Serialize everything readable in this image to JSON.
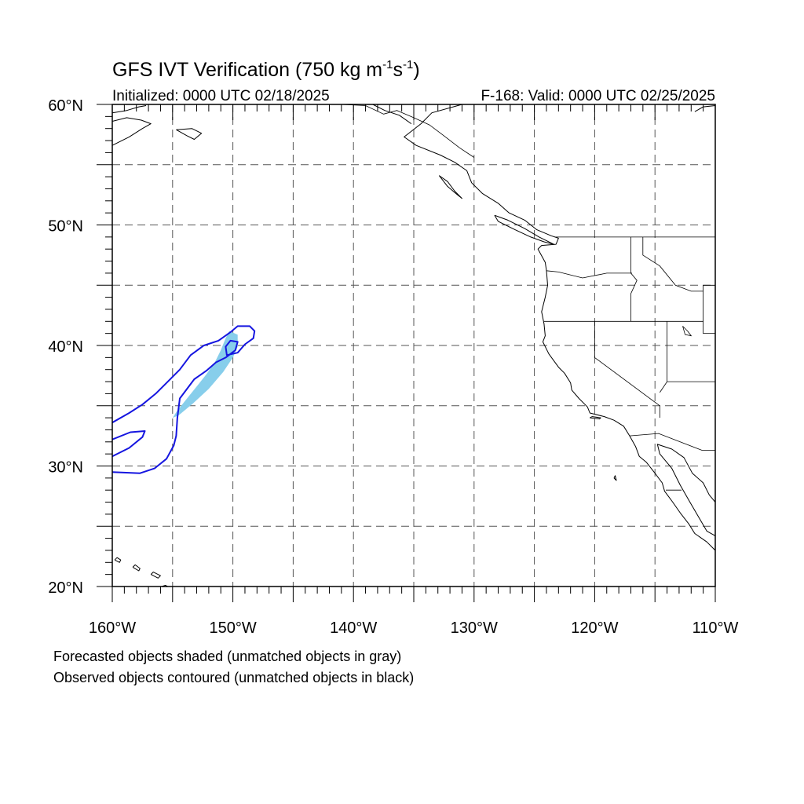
{
  "title": {
    "main": "GFS IVT Verification (750 kg m",
    "exp1": "-1",
    "mid": "s",
    "exp2": "-1",
    "close": ")"
  },
  "init_label": "Initialized: 0000 UTC 02/18/2025",
  "valid_label": "F-168: Valid: 0000 UTC 02/25/2025",
  "map": {
    "projection": "cylindrical-equidistant",
    "lon_range": [
      -160,
      -110
    ],
    "lat_range": [
      20,
      60
    ],
    "grid_spacing_deg": 5,
    "grid_style": "dashed",
    "lon_labels": [
      "160°W",
      "150°W",
      "140°W",
      "130°W",
      "120°W",
      "110°W"
    ],
    "lat_labels": [
      "20°N",
      "30°N",
      "40°N",
      "50°N",
      "60°N"
    ],
    "label_lons": [
      -160,
      -150,
      -140,
      -130,
      -120,
      -110
    ],
    "label_lats": [
      20,
      30,
      40,
      50,
      60
    ],
    "colors": {
      "coast": "#000000",
      "grid": "#555555",
      "forecast_fill": "#87ceeb",
      "observed_contour": "#1515e0"
    },
    "forecast_object": {
      "type": "shaded",
      "matched": true,
      "lonlat": [
        [
          -155.0,
          34.0
        ],
        [
          -154.6,
          34.6
        ],
        [
          -153.8,
          35.6
        ],
        [
          -153.0,
          36.6
        ],
        [
          -152.2,
          37.6
        ],
        [
          -151.5,
          38.6
        ],
        [
          -151.0,
          39.6
        ],
        [
          -150.6,
          40.6
        ],
        [
          -150.3,
          41.2
        ],
        [
          -149.6,
          40.9
        ],
        [
          -149.6,
          39.9
        ],
        [
          -150.0,
          39.0
        ],
        [
          -150.8,
          37.8
        ],
        [
          -152.0,
          36.4
        ],
        [
          -153.3,
          35.2
        ],
        [
          -154.5,
          34.2
        ]
      ]
    },
    "observed_object": {
      "type": "contour",
      "matched": true,
      "lonlat": [
        [
          -160.0,
          33.6
        ],
        [
          -158.6,
          34.4
        ],
        [
          -157.5,
          35.1
        ],
        [
          -156.4,
          36.0
        ],
        [
          -155.4,
          37.0
        ],
        [
          -154.4,
          38.0
        ],
        [
          -153.5,
          39.2
        ],
        [
          -152.4,
          40.0
        ],
        [
          -151.2,
          40.4
        ],
        [
          -150.2,
          41.1
        ],
        [
          -149.6,
          41.6
        ],
        [
          -148.6,
          41.6
        ],
        [
          -148.2,
          41.2
        ],
        [
          -148.3,
          40.6
        ],
        [
          -149.0,
          40.1
        ],
        [
          -149.6,
          39.4
        ],
        [
          -150.5,
          39.2
        ],
        [
          -150.6,
          39.9
        ],
        [
          -150.2,
          40.4
        ],
        [
          -149.6,
          40.3
        ],
        [
          -149.8,
          39.6
        ],
        [
          -150.6,
          39.0
        ],
        [
          -151.4,
          38.6
        ],
        [
          -152.2,
          37.9
        ],
        [
          -153.2,
          37.2
        ],
        [
          -154.4,
          35.6
        ],
        [
          -154.6,
          34.0
        ],
        [
          -154.7,
          32.5
        ],
        [
          -154.9,
          31.7
        ],
        [
          -155.5,
          30.6
        ],
        [
          -156.5,
          29.8
        ],
        [
          -157.7,
          29.4
        ],
        [
          -160.0,
          29.5
        ]
      ]
    },
    "observed_arm": {
      "lonlat": [
        [
          -160.0,
          32.2
        ],
        [
          -158.5,
          32.8
        ],
        [
          -157.3,
          32.9
        ],
        [
          -157.5,
          32.4
        ],
        [
          -158.6,
          31.5
        ],
        [
          -160.0,
          30.8
        ]
      ]
    },
    "coastlines": [
      {
        "name": "north-america-coast",
        "lonlat": [
          [
            -131.0,
            60.0
          ],
          [
            -133.5,
            59.3
          ],
          [
            -134.4,
            58.4
          ],
          [
            -135.8,
            57.3
          ],
          [
            -134.8,
            56.6
          ],
          [
            -132.8,
            55.8
          ],
          [
            -131.6,
            55.2
          ],
          [
            -130.6,
            54.5
          ],
          [
            -130.2,
            53.5
          ],
          [
            -129.3,
            52.6
          ],
          [
            -128.0,
            51.8
          ],
          [
            -127.1,
            51.0
          ],
          [
            -125.8,
            50.4
          ],
          [
            -124.8,
            49.6
          ],
          [
            -123.6,
            49.1
          ],
          [
            -123.0,
            48.9
          ],
          [
            -123.2,
            48.4
          ],
          [
            -124.4,
            48.3
          ],
          [
            -124.7,
            48.0
          ],
          [
            -124.1,
            46.9
          ],
          [
            -124.0,
            46.2
          ],
          [
            -123.9,
            45.0
          ],
          [
            -124.1,
            44.0
          ],
          [
            -124.4,
            42.8
          ],
          [
            -124.2,
            41.8
          ],
          [
            -124.1,
            40.8
          ],
          [
            -124.3,
            40.3
          ],
          [
            -123.8,
            39.3
          ],
          [
            -123.0,
            38.2
          ],
          [
            -122.5,
            37.7
          ],
          [
            -122.0,
            36.9
          ],
          [
            -121.9,
            36.3
          ],
          [
            -121.3,
            35.6
          ],
          [
            -120.6,
            34.9
          ],
          [
            -120.4,
            34.4
          ],
          [
            -119.2,
            34.1
          ],
          [
            -118.4,
            33.8
          ],
          [
            -117.6,
            33.3
          ],
          [
            -117.1,
            32.5
          ],
          [
            -116.6,
            31.6
          ],
          [
            -116.3,
            30.8
          ],
          [
            -115.7,
            30.3
          ],
          [
            -115.0,
            29.4
          ],
          [
            -114.4,
            28.6
          ],
          [
            -114.2,
            27.9
          ],
          [
            -113.6,
            27.1
          ],
          [
            -112.9,
            26.1
          ],
          [
            -112.2,
            25.2
          ],
          [
            -111.7,
            24.4
          ],
          [
            -110.7,
            23.7
          ],
          [
            -110.0,
            23.0
          ]
        ]
      },
      {
        "name": "baja-gulf-coast",
        "lonlat": [
          [
            -110.0,
            24.2
          ],
          [
            -110.7,
            24.6
          ],
          [
            -111.4,
            25.8
          ],
          [
            -112.1,
            27.0
          ],
          [
            -112.9,
            28.4
          ],
          [
            -113.6,
            29.8
          ],
          [
            -114.6,
            31.0
          ],
          [
            -114.8,
            31.8
          ],
          [
            -113.6,
            31.4
          ],
          [
            -112.6,
            30.7
          ],
          [
            -111.9,
            29.4
          ],
          [
            -111.0,
            28.6
          ],
          [
            -110.5,
            27.6
          ],
          [
            -110.0,
            27.0
          ]
        ]
      },
      {
        "name": "vancouver-island",
        "lonlat": [
          [
            -128.3,
            50.8
          ],
          [
            -127.2,
            50.4
          ],
          [
            -125.8,
            49.7
          ],
          [
            -124.6,
            49.0
          ],
          [
            -123.4,
            48.4
          ],
          [
            -124.2,
            48.6
          ],
          [
            -125.3,
            49.0
          ],
          [
            -126.6,
            49.6
          ],
          [
            -128.0,
            50.3
          ],
          [
            -128.3,
            50.8
          ]
        ]
      },
      {
        "name": "haida-gwaii",
        "lonlat": [
          [
            -132.9,
            54.1
          ],
          [
            -132.2,
            53.6
          ],
          [
            -131.6,
            52.8
          ],
          [
            -131.0,
            52.2
          ],
          [
            -131.5,
            52.6
          ],
          [
            -132.2,
            53.2
          ],
          [
            -132.9,
            54.1
          ]
        ]
      },
      {
        "name": "alaska-coast-west",
        "lonlat": [
          [
            -160.0,
            56.6
          ],
          [
            -158.6,
            57.3
          ],
          [
            -157.5,
            58.0
          ],
          [
            -156.8,
            58.4
          ],
          [
            -157.6,
            58.7
          ],
          [
            -158.8,
            58.9
          ],
          [
            -160.0,
            58.6
          ]
        ]
      },
      {
        "name": "alaska-coast-nw",
        "lonlat": [
          [
            -160.0,
            59.3
          ],
          [
            -158.8,
            59.5
          ],
          [
            -157.8,
            59.8
          ],
          [
            -157.2,
            59.9
          ]
        ]
      },
      {
        "name": "kodiak-island",
        "lonlat": [
          [
            -154.7,
            57.9
          ],
          [
            -153.8,
            57.4
          ],
          [
            -153.2,
            57.1
          ],
          [
            -152.6,
            57.6
          ],
          [
            -153.4,
            58.0
          ],
          [
            -154.7,
            57.9
          ]
        ]
      },
      {
        "name": "alaska-panhandle-north",
        "lonlat": [
          [
            -138.4,
            60.0
          ],
          [
            -137.4,
            59.5
          ],
          [
            -136.2,
            59.1
          ],
          [
            -135.2,
            58.4
          ]
        ]
      },
      {
        "name": "big-island",
        "lonlat": [
          [
            -155.9,
            20.0
          ],
          [
            -155.3,
            19.6
          ],
          [
            -155.0,
            19.8
          ],
          [
            -155.6,
            20.1
          ],
          [
            -155.9,
            20.0
          ]
        ]
      },
      {
        "name": "maui",
        "lonlat": [
          [
            -156.8,
            21.0
          ],
          [
            -156.2,
            20.7
          ],
          [
            -156.0,
            20.9
          ],
          [
            -156.6,
            21.2
          ],
          [
            -156.8,
            21.0
          ]
        ]
      },
      {
        "name": "oahu",
        "lonlat": [
          [
            -158.3,
            21.6
          ],
          [
            -157.8,
            21.3
          ],
          [
            -157.7,
            21.5
          ],
          [
            -158.1,
            21.8
          ],
          [
            -158.3,
            21.6
          ]
        ]
      },
      {
        "name": "kauai",
        "lonlat": [
          [
            -159.8,
            22.2
          ],
          [
            -159.4,
            22.0
          ],
          [
            -159.3,
            22.2
          ],
          [
            -159.6,
            22.4
          ],
          [
            -159.8,
            22.2
          ]
        ]
      },
      {
        "name": "channel-islands",
        "lonlat": [
          [
            -120.4,
            34.0
          ],
          [
            -119.6,
            33.9
          ],
          [
            -119.5,
            34.0
          ],
          [
            -120.2,
            34.1
          ],
          [
            -120.4,
            34.0
          ]
        ]
      },
      {
        "name": "guadalupe-island",
        "lonlat": [
          [
            -118.4,
            29.0
          ],
          [
            -118.2,
            28.8
          ],
          [
            -118.3,
            29.2
          ],
          [
            -118.4,
            29.0
          ]
        ]
      },
      {
        "name": "hudson-bay-edge",
        "lonlat": [
          [
            -111.7,
            59.4
          ],
          [
            -111.0,
            59.8
          ],
          [
            -110.0,
            59.9
          ]
        ]
      }
    ],
    "borders": [
      {
        "name": "canada-us-border",
        "lonlat": [
          [
            -123.3,
            49.0
          ],
          [
            -110.0,
            49.0
          ]
        ]
      },
      {
        "name": "alaska-canada-border",
        "lonlat": [
          [
            -141.0,
            60.0
          ],
          [
            -139.0,
            59.9
          ],
          [
            -137.5,
            59.2
          ],
          [
            -136.4,
            59.5
          ],
          [
            -135.0,
            58.9
          ],
          [
            -133.7,
            58.3
          ],
          [
            -132.5,
            57.4
          ],
          [
            -131.2,
            56.4
          ],
          [
            -130.0,
            55.6
          ]
        ]
      },
      {
        "name": "washington-oregon",
        "lonlat": [
          [
            -124.0,
            46.2
          ],
          [
            -123.0,
            46.1
          ],
          [
            -121.0,
            45.6
          ],
          [
            -119.0,
            46.0
          ],
          [
            -116.9,
            46.0
          ]
        ]
      },
      {
        "name": "idaho-west",
        "lonlat": [
          [
            -117.0,
            49.0
          ],
          [
            -117.0,
            46.0
          ],
          [
            -116.5,
            45.4
          ],
          [
            -117.0,
            44.3
          ],
          [
            -117.0,
            42.0
          ]
        ]
      },
      {
        "name": "oregon-california-nevada",
        "lonlat": [
          [
            -124.2,
            42.0
          ],
          [
            -111.0,
            42.0
          ]
        ]
      },
      {
        "name": "montana-idaho",
        "lonlat": [
          [
            -116.0,
            49.0
          ],
          [
            -116.0,
            47.5
          ],
          [
            -114.6,
            46.6
          ],
          [
            -113.3,
            45.0
          ],
          [
            -112.0,
            44.5
          ],
          [
            -111.0,
            44.5
          ]
        ]
      },
      {
        "name": "wyoming-box",
        "lonlat": [
          [
            -111.0,
            45.0
          ],
          [
            -110.0,
            45.0
          ],
          [
            -110.0,
            41.0
          ],
          [
            -111.0,
            41.0
          ],
          [
            -111.0,
            45.0
          ]
        ]
      },
      {
        "name": "california-nevada",
        "lonlat": [
          [
            -120.0,
            42.0
          ],
          [
            -120.0,
            39.0
          ],
          [
            -114.6,
            35.0
          ],
          [
            -114.6,
            34.0
          ]
        ]
      },
      {
        "name": "nevada-utah",
        "lonlat": [
          [
            -114.0,
            42.0
          ],
          [
            -114.0,
            37.0
          ],
          [
            -114.6,
            36.1
          ]
        ]
      },
      {
        "name": "utah-arizona",
        "lonlat": [
          [
            -114.0,
            37.0
          ],
          [
            -110.0,
            37.0
          ]
        ]
      },
      {
        "name": "us-mexico-border",
        "lonlat": [
          [
            -117.1,
            32.5
          ],
          [
            -114.7,
            32.7
          ],
          [
            -111.1,
            31.3
          ],
          [
            -110.0,
            31.3
          ]
        ]
      },
      {
        "name": "baja-state-line",
        "lonlat": [
          [
            -114.1,
            28.0
          ],
          [
            -112.8,
            28.0
          ]
        ]
      },
      {
        "name": "great-salt-lake",
        "lonlat": [
          [
            -112.7,
            41.6
          ],
          [
            -112.3,
            41.2
          ],
          [
            -112.0,
            40.8
          ],
          [
            -112.5,
            40.9
          ],
          [
            -112.7,
            41.6
          ]
        ]
      }
    ]
  },
  "notes": [
    "Forecasted objects shaded (unmatched objects in gray)",
    "Observed objects contoured (unmatched objects in black)"
  ]
}
